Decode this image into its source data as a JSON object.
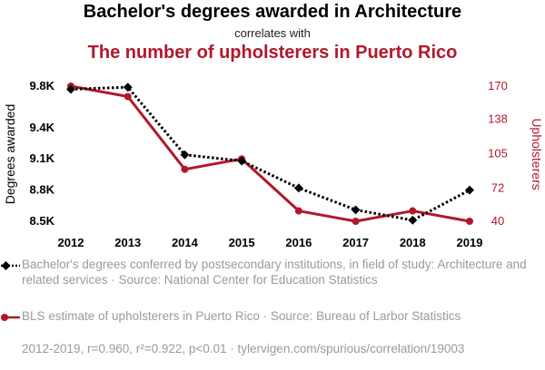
{
  "header": {
    "title": "Bachelor's degrees awarded in Architecture",
    "connector": "correlates with",
    "subtitle": "The number of upholsterers in Puerto Rico"
  },
  "colors": {
    "series1": "#000000",
    "series2": "#b2182b",
    "axis_text": "#000000",
    "muted": "#9a9a9a"
  },
  "chart_data": {
    "type": "line",
    "x": [
      2012,
      2013,
      2014,
      2015,
      2016,
      2017,
      2018,
      2019
    ],
    "xticks": [
      "2012",
      "2013",
      "2014",
      "2015",
      "2016",
      "2017",
      "2018",
      "2019"
    ],
    "grid": false,
    "series": [
      {
        "name": "Degrees awarded",
        "axis": "left",
        "style": "dotted",
        "marker": "diamond",
        "values": [
          9770,
          9790,
          9140,
          9080,
          8820,
          8610,
          8510,
          8800
        ]
      },
      {
        "name": "Upholsterers",
        "axis": "right",
        "style": "solid",
        "marker": "circle",
        "values": [
          170,
          160,
          90,
          100,
          50,
          40,
          50,
          40
        ]
      }
    ],
    "y_left": {
      "label": "Degrees awarded",
      "ticks": [
        9800,
        9400,
        9100,
        8800,
        8500
      ],
      "tick_labels": [
        "9.8K",
        "9.4K",
        "9.1K",
        "8.8K",
        "8.5K"
      ],
      "range": [
        8500,
        9800
      ]
    },
    "y_right": {
      "label": "Upholsterers",
      "ticks": [
        170,
        138,
        105,
        72,
        40
      ],
      "tick_labels": [
        "170",
        "138",
        "105",
        "72",
        "40"
      ],
      "range": [
        40,
        170
      ]
    }
  },
  "legend": [
    {
      "text": "Bachelor's degrees conferred by postsecondary institutions, in field of study: Architecture and related services · Source: National Center for Education Statistics"
    },
    {
      "text": "BLS estimate of upholsterers in Puerto Rico · Source: Bureau of Larbor Statistics"
    }
  ],
  "footer": "2012-2019, r=0.960, r²=0.922, p<0.01 · tylervigen.com/spurious/correlation/19003"
}
